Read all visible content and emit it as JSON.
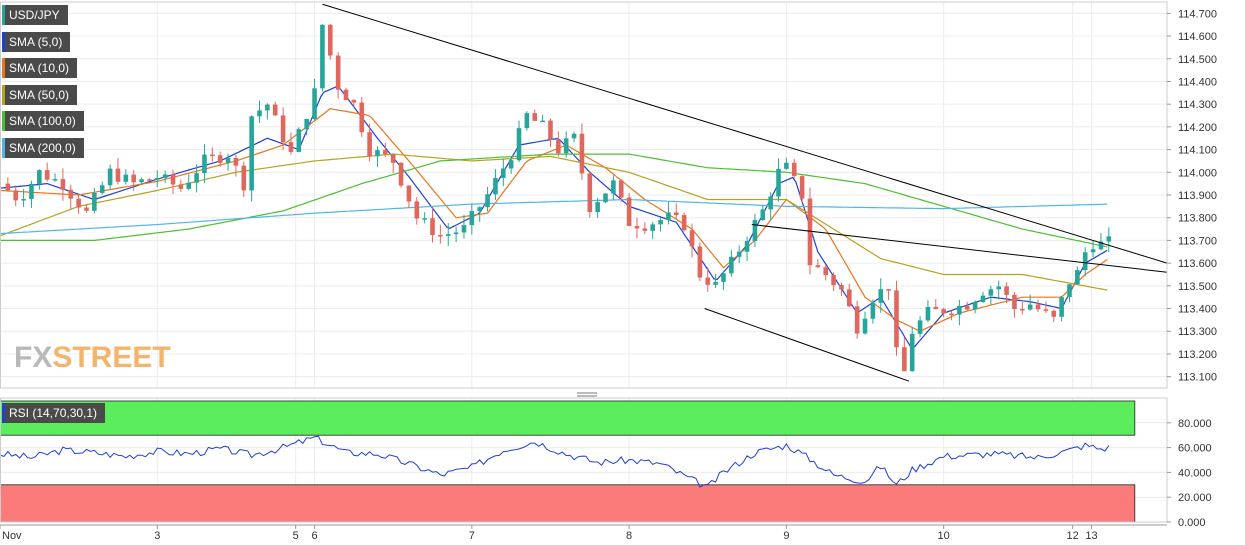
{
  "legend": [
    {
      "label": "USD/JPY",
      "color": "#26a69a"
    },
    {
      "label": "SMA (5,0)",
      "color": "#1f3fd6"
    },
    {
      "label": "SMA (10,0)",
      "color": "#e8761d"
    },
    {
      "label": "SMA (50,0)",
      "color": "#b5a21e"
    },
    {
      "label": "SMA (100,0)",
      "color": "#4cbf30"
    },
    {
      "label": "SMA (200,0)",
      "color": "#52b5e8"
    }
  ],
  "watermark": {
    "fx": "FX",
    "street": "STREET"
  },
  "colors": {
    "up": "#26a69a",
    "down": "#e0675e",
    "trend": "#000000",
    "rsi": "#1f3fd6",
    "overbought": "#5ced5c",
    "oversold": "#fb7a7a"
  },
  "chart_data": [
    {
      "type": "candlestick",
      "title": "USD/JPY",
      "ylim": [
        113.05,
        114.75
      ],
      "y_ticks": [
        "114.700",
        "114.600",
        "114.500",
        "114.400",
        "114.300",
        "114.200",
        "114.100",
        "114.000",
        "113.900",
        "113.800",
        "113.700",
        "113.600",
        "113.500",
        "113.400",
        "113.300",
        "113.200",
        "113.100"
      ],
      "x_ticks": [
        {
          "label": "Nov",
          "x": 0
        },
        {
          "label": "3",
          "x": 1
        },
        {
          "label": "5",
          "x": 1.88
        },
        {
          "label": "6",
          "x": 2
        },
        {
          "label": "7",
          "x": 3
        },
        {
          "label": "8",
          "x": 4
        },
        {
          "label": "9",
          "x": 5
        },
        {
          "label": "10",
          "x": 6
        },
        {
          "label": "12",
          "x": 6.82
        },
        {
          "label": "13",
          "x": 6.94
        }
      ],
      "xlim": [
        0,
        7.42
      ],
      "close_anchors": [
        [
          0,
          113.95
        ],
        [
          0.12,
          113.88
        ],
        [
          0.25,
          114.0
        ],
        [
          0.4,
          113.95
        ],
        [
          0.55,
          113.82
        ],
        [
          0.7,
          114.0
        ],
        [
          0.85,
          113.95
        ],
        [
          1.0,
          113.98
        ],
        [
          1.15,
          113.93
        ],
        [
          1.3,
          114.05
        ],
        [
          1.45,
          114.08
        ],
        [
          1.55,
          113.95
        ],
        [
          1.6,
          114.25
        ],
        [
          1.7,
          114.3
        ],
        [
          1.85,
          114.08
        ],
        [
          2.0,
          114.35
        ],
        [
          2.05,
          114.65
        ],
        [
          2.15,
          114.38
        ],
        [
          2.25,
          114.3
        ],
        [
          2.35,
          114.1
        ],
        [
          2.5,
          114.05
        ],
        [
          2.65,
          113.8
        ],
        [
          2.8,
          113.72
        ],
        [
          2.95,
          113.75
        ],
        [
          3.1,
          113.9
        ],
        [
          3.25,
          114.08
        ],
        [
          3.35,
          114.25
        ],
        [
          3.45,
          114.2
        ],
        [
          3.55,
          114.1
        ],
        [
          3.65,
          114.15
        ],
        [
          3.75,
          113.85
        ],
        [
          3.9,
          113.95
        ],
        [
          4.0,
          113.78
        ],
        [
          4.1,
          113.77
        ],
        [
          4.25,
          113.8
        ],
        [
          4.35,
          113.77
        ],
        [
          4.45,
          113.55
        ],
        [
          4.55,
          113.5
        ],
        [
          4.65,
          113.6
        ],
        [
          4.75,
          113.72
        ],
        [
          4.85,
          113.83
        ],
        [
          4.95,
          114.0
        ],
        [
          5.0,
          114.02
        ],
        [
          5.1,
          113.9
        ],
        [
          5.15,
          113.6
        ],
        [
          5.25,
          113.55
        ],
        [
          5.35,
          113.48
        ],
        [
          5.45,
          113.32
        ],
        [
          5.55,
          113.45
        ],
        [
          5.65,
          113.5
        ],
        [
          5.7,
          113.2
        ],
        [
          5.75,
          113.12
        ],
        [
          5.8,
          113.3
        ],
        [
          5.9,
          113.38
        ],
        [
          6.05,
          113.4
        ],
        [
          6.15,
          113.42
        ],
        [
          6.25,
          113.48
        ],
        [
          6.35,
          113.5
        ],
        [
          6.45,
          113.4
        ],
        [
          6.55,
          113.42
        ],
        [
          6.7,
          113.35
        ],
        [
          6.8,
          113.52
        ],
        [
          6.87,
          113.57
        ],
        [
          6.92,
          113.7
        ],
        [
          6.98,
          113.68
        ],
        [
          7.05,
          113.69
        ]
      ],
      "sma_anchors": {
        "sma5": [
          [
            0,
            113.93
          ],
          [
            0.3,
            113.95
          ],
          [
            0.6,
            113.88
          ],
          [
            1.0,
            113.97
          ],
          [
            1.4,
            114.05
          ],
          [
            1.7,
            114.15
          ],
          [
            1.9,
            114.1
          ],
          [
            2.05,
            114.35
          ],
          [
            2.15,
            114.38
          ],
          [
            2.4,
            114.15
          ],
          [
            2.6,
            113.98
          ],
          [
            2.85,
            113.75
          ],
          [
            3.05,
            113.82
          ],
          [
            3.3,
            114.12
          ],
          [
            3.55,
            114.15
          ],
          [
            3.75,
            114.0
          ],
          [
            4.0,
            113.85
          ],
          [
            4.3,
            113.78
          ],
          [
            4.55,
            113.52
          ],
          [
            4.75,
            113.68
          ],
          [
            4.95,
            113.95
          ],
          [
            5.05,
            113.98
          ],
          [
            5.2,
            113.65
          ],
          [
            5.45,
            113.38
          ],
          [
            5.6,
            113.45
          ],
          [
            5.8,
            113.22
          ],
          [
            6.0,
            113.38
          ],
          [
            6.3,
            113.45
          ],
          [
            6.55,
            113.43
          ],
          [
            6.75,
            113.4
          ],
          [
            6.9,
            113.6
          ],
          [
            7.05,
            113.66
          ]
        ],
        "sma10": [
          [
            0,
            113.92
          ],
          [
            0.5,
            113.9
          ],
          [
            1.0,
            113.96
          ],
          [
            1.5,
            114.05
          ],
          [
            1.8,
            114.12
          ],
          [
            2.1,
            114.28
          ],
          [
            2.35,
            114.25
          ],
          [
            2.6,
            114.05
          ],
          [
            2.9,
            113.8
          ],
          [
            3.1,
            113.82
          ],
          [
            3.35,
            114.05
          ],
          [
            3.6,
            114.12
          ],
          [
            3.85,
            114.02
          ],
          [
            4.1,
            113.88
          ],
          [
            4.4,
            113.75
          ],
          [
            4.6,
            113.58
          ],
          [
            4.8,
            113.7
          ],
          [
            5.0,
            113.88
          ],
          [
            5.25,
            113.75
          ],
          [
            5.5,
            113.45
          ],
          [
            5.7,
            113.35
          ],
          [
            5.85,
            113.3
          ],
          [
            6.1,
            113.38
          ],
          [
            6.5,
            113.45
          ],
          [
            6.75,
            113.45
          ],
          [
            6.9,
            113.55
          ],
          [
            7.05,
            113.62
          ]
        ],
        "sma50": [
          [
            0,
            113.72
          ],
          [
            0.5,
            113.85
          ],
          [
            1.0,
            113.92
          ],
          [
            1.5,
            114.0
          ],
          [
            2.0,
            114.05
          ],
          [
            2.5,
            114.08
          ],
          [
            3.0,
            114.05
          ],
          [
            3.5,
            114.07
          ],
          [
            4.0,
            114.0
          ],
          [
            4.5,
            113.88
          ],
          [
            5.0,
            113.88
          ],
          [
            5.3,
            113.75
          ],
          [
            5.6,
            113.62
          ],
          [
            6.0,
            113.55
          ],
          [
            6.5,
            113.55
          ],
          [
            7.05,
            113.48
          ]
        ],
        "sma100": [
          [
            0,
            113.7
          ],
          [
            0.6,
            113.7
          ],
          [
            1.2,
            113.75
          ],
          [
            1.8,
            113.83
          ],
          [
            2.3,
            113.95
          ],
          [
            2.8,
            114.05
          ],
          [
            3.5,
            114.08
          ],
          [
            4.0,
            114.08
          ],
          [
            4.5,
            114.02
          ],
          [
            5.0,
            114.0
          ],
          [
            5.5,
            113.95
          ],
          [
            6.0,
            113.85
          ],
          [
            6.5,
            113.75
          ],
          [
            7.05,
            113.67
          ]
        ],
        "sma200": [
          [
            0,
            113.73
          ],
          [
            1.0,
            113.77
          ],
          [
            2.0,
            113.82
          ],
          [
            3.0,
            113.86
          ],
          [
            4.0,
            113.88
          ],
          [
            5.0,
            113.85
          ],
          [
            6.0,
            113.84
          ],
          [
            7.05,
            113.86
          ]
        ]
      },
      "trendlines": [
        {
          "from": [
            2.05,
            114.74
          ],
          "to": [
            7.42,
            113.6
          ]
        },
        {
          "from": [
            4.78,
            113.77
          ],
          "to": [
            7.42,
            113.56
          ]
        },
        {
          "from": [
            4.48,
            113.4
          ],
          "to": [
            5.78,
            113.08
          ]
        }
      ]
    },
    {
      "type": "line",
      "title": "RSI (14,70,30,1)",
      "ylim": [
        0,
        100
      ],
      "y_ticks": [
        "80.000",
        "60.000",
        "40.000",
        "20.000",
        "0.000"
      ],
      "overbought": 70,
      "oversold": 30,
      "values_anchors": [
        [
          0,
          55
        ],
        [
          0.2,
          52
        ],
        [
          0.4,
          58
        ],
        [
          0.6,
          56
        ],
        [
          0.8,
          53
        ],
        [
          1.0,
          57
        ],
        [
          1.2,
          55
        ],
        [
          1.4,
          59
        ],
        [
          1.6,
          54
        ],
        [
          1.8,
          60
        ],
        [
          2.0,
          68
        ],
        [
          2.2,
          56
        ],
        [
          2.4,
          55
        ],
        [
          2.6,
          47
        ],
        [
          2.8,
          38
        ],
        [
          3.0,
          44
        ],
        [
          3.2,
          58
        ],
        [
          3.4,
          65
        ],
        [
          3.6,
          55
        ],
        [
          3.8,
          48
        ],
        [
          4.0,
          50
        ],
        [
          4.2,
          47
        ],
        [
          4.4,
          34
        ],
        [
          4.5,
          28
        ],
        [
          4.6,
          40
        ],
        [
          4.8,
          56
        ],
        [
          5.0,
          62
        ],
        [
          5.1,
          55
        ],
        [
          5.3,
          38
        ],
        [
          5.5,
          33
        ],
        [
          5.6,
          45
        ],
        [
          5.7,
          30
        ],
        [
          5.8,
          42
        ],
        [
          6.0,
          53
        ],
        [
          6.3,
          55
        ],
        [
          6.6,
          52
        ],
        [
          6.8,
          58
        ],
        [
          6.9,
          62
        ],
        [
          7.0,
          59
        ],
        [
          7.05,
          60
        ]
      ]
    }
  ]
}
